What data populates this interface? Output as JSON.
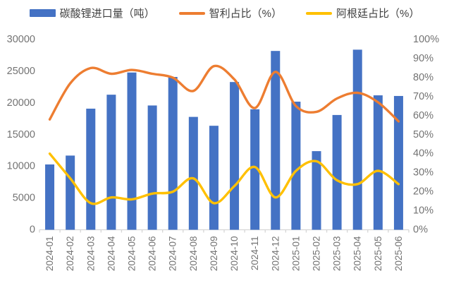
{
  "legend": {
    "items": [
      {
        "label": "碳酸锂进口量（吨）",
        "marker": "bar",
        "color": "#4472C4"
      },
      {
        "label": "智利占比（%）",
        "marker": "line",
        "color": "#ED7D31"
      },
      {
        "label": "阿根廷占比（%）",
        "marker": "line",
        "color": "#FFC000"
      }
    ]
  },
  "chart_data": {
    "type": "combo-bar-line",
    "title": "",
    "categories": [
      "2024-01",
      "2024-02",
      "2024-03",
      "2024-04",
      "2024-05",
      "2024-06",
      "2024-07",
      "2024-08",
      "2024-09",
      "2024-10",
      "2024-11",
      "2024-12",
      "2025-01",
      "2025-02",
      "2025-03",
      "2025-04",
      "2025-05",
      "2025-06"
    ],
    "series": [
      {
        "name": "碳酸锂进口量（吨）",
        "type": "bar",
        "axis": "left",
        "color": "#4472C4",
        "values": [
          10300,
          11700,
          19100,
          21300,
          24800,
          19600,
          24100,
          17800,
          16400,
          23300,
          19000,
          28200,
          20200,
          12400,
          18100,
          28400,
          21200,
          21100
        ]
      },
      {
        "name": "智利占比（%）",
        "type": "line",
        "axis": "right",
        "color": "#ED7D31",
        "smooth": true,
        "values": [
          58,
          77,
          85,
          82,
          84,
          82,
          80,
          73,
          86,
          79,
          64,
          83,
          65,
          62,
          69,
          72,
          67,
          57
        ]
      },
      {
        "name": "阿根廷占比（%）",
        "type": "line",
        "axis": "right",
        "color": "#FFC000",
        "smooth": true,
        "values": [
          40,
          27,
          14,
          17,
          16,
          19,
          20,
          27,
          14,
          23,
          33,
          17,
          31,
          36,
          26,
          24,
          31,
          24
        ]
      }
    ],
    "left_axis": {
      "min": 0,
      "max": 30000,
      "step": 5000,
      "suffix": ""
    },
    "right_axis": {
      "min": 0,
      "max": 100,
      "step": 10,
      "suffix": "%"
    },
    "grid": false,
    "legend_position": "top",
    "x_labels_rotated": true
  },
  "style": {
    "axis_label_color": "#737373",
    "axis_line_color": "#D6D6D6",
    "background": "#FFFFFF"
  }
}
